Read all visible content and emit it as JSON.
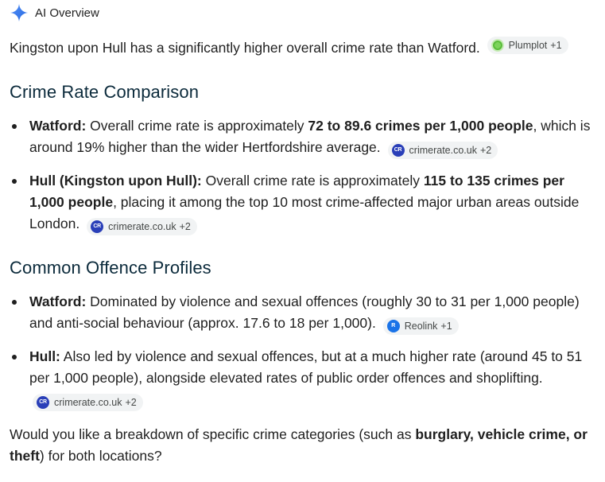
{
  "header": {
    "title": "AI Overview",
    "icon": "sparkle-icon"
  },
  "intro": {
    "text": "Kingston upon Hull has a significantly higher overall crime rate than Watford.",
    "chip": {
      "source": "Plumplot",
      "extra": "+1",
      "icon": "plumplot-icon"
    }
  },
  "section1": {
    "heading": "Crime Rate Comparison",
    "items": [
      {
        "label": "Watford:",
        "text_before": " Overall crime rate is approximately ",
        "bold": "72 to 89.6 crimes per 1,000 people",
        "text_after": ", which is around 19% higher than the wider Hertfordshire average.",
        "chip": {
          "source": "crimerate.co.uk",
          "extra": "+2",
          "icon_text": "CR"
        }
      },
      {
        "label": "Hull (Kingston upon Hull):",
        "text_before": " Overall crime rate is approximately ",
        "bold": "115 to 135 crimes per 1,000 people",
        "text_after": ", placing it among the top 10 most crime-affected major urban areas outside London.",
        "chip": {
          "source": "crimerate.co.uk",
          "extra": "+2",
          "icon_text": "CR"
        }
      }
    ]
  },
  "section2": {
    "heading": "Common Offence Profiles",
    "items": [
      {
        "label": "Watford:",
        "text": " Dominated by violence and sexual offences (roughly 30 to 31 per 1,000 people) and anti-social behaviour (approx. 17.6 to 18 per 1,000).",
        "chip": {
          "source": "Reolink",
          "extra": "+1",
          "icon_text": "R"
        }
      },
      {
        "label": "Hull:",
        "text": " Also led by violence and sexual offences, but at a much higher rate (around 45 to 51 per 1,000 people), alongside elevated rates of public order offences and shoplifting.",
        "chip": {
          "source": "crimerate.co.uk",
          "extra": "+2",
          "icon_text": "CR"
        }
      }
    ]
  },
  "followup": {
    "text_before": "Would you like a breakdown of specific crime categories (such as ",
    "bold": "burglary, vehicle crime, or theft",
    "text_after": ") for both locations?"
  }
}
